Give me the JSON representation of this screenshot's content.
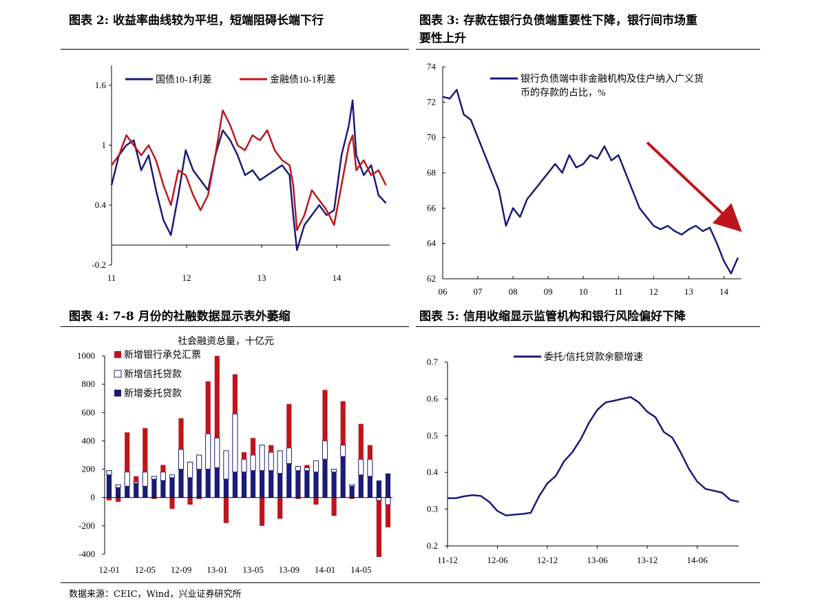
{
  "titles": {
    "c2": "图表 2:  收益率曲线较为平坦，短端阻碍长端下行",
    "c3_line1": "图表 3: 存款在银行负债端重要性下降，银行间市场重",
    "c3_line2": "要性上升",
    "c4": "图表 4:  7-8 月份的社融数据显示表外萎缩",
    "c5": "图表 5:  信用收缩显示监管机构和银行风险偏好下降"
  },
  "source": "数据来源：CEIC，Wind，兴业证券研究所",
  "colors": {
    "navy": "#1a1a78",
    "red": "#c0141c"
  },
  "chart_data": [
    {
      "id": "c2",
      "type": "line",
      "ylim": [
        -0.2,
        1.8
      ],
      "yticks": [
        -0.2,
        0.4,
        1,
        1.6
      ],
      "xticks": [
        "11",
        "12",
        "13",
        "14"
      ],
      "x_start": 2011.0,
      "series": [
        {
          "name": "国债10-1利差",
          "color": "#1a1a78",
          "x": [
            2011.0,
            2011.1,
            2011.2,
            2011.3,
            2011.4,
            2011.5,
            2011.6,
            2011.7,
            2011.8,
            2011.9,
            2012.0,
            2012.1,
            2012.2,
            2012.3,
            2012.4,
            2012.5,
            2012.6,
            2012.7,
            2012.8,
            2012.9,
            2013.0,
            2013.1,
            2013.2,
            2013.3,
            2013.4,
            2013.45,
            2013.5,
            2013.6,
            2013.7,
            2013.8,
            2013.9,
            2014.0,
            2014.1,
            2014.2,
            2014.25,
            2014.3,
            2014.4,
            2014.5,
            2014.6,
            2014.7
          ],
          "values": [
            0.6,
            0.9,
            1.0,
            1.05,
            0.75,
            0.9,
            0.55,
            0.25,
            0.1,
            0.5,
            0.95,
            0.75,
            0.65,
            0.55,
            0.9,
            1.15,
            1.05,
            0.9,
            0.7,
            0.75,
            0.65,
            0.7,
            0.75,
            0.8,
            0.7,
            0.3,
            -0.05,
            0.2,
            0.3,
            0.4,
            0.3,
            0.35,
            0.9,
            1.2,
            1.45,
            0.9,
            0.7,
            0.8,
            0.5,
            0.42
          ]
        },
        {
          "name": "金融债10-1利差",
          "color": "#c0141c",
          "x": [
            2011.0,
            2011.1,
            2011.2,
            2011.3,
            2011.4,
            2011.5,
            2011.6,
            2011.7,
            2011.8,
            2011.9,
            2012.0,
            2012.1,
            2012.2,
            2012.3,
            2012.4,
            2012.5,
            2012.6,
            2012.7,
            2012.8,
            2012.9,
            2013.0,
            2013.1,
            2013.2,
            2013.3,
            2013.4,
            2013.45,
            2013.5,
            2013.6,
            2013.7,
            2013.8,
            2013.9,
            2014.0,
            2014.1,
            2014.2,
            2014.25,
            2014.3,
            2014.4,
            2014.5,
            2014.6,
            2014.7
          ],
          "values": [
            0.8,
            0.9,
            1.1,
            1.0,
            0.9,
            1.0,
            0.85,
            0.6,
            0.4,
            0.75,
            0.7,
            0.5,
            0.35,
            0.5,
            0.9,
            1.35,
            1.2,
            1.0,
            0.95,
            1.1,
            1.05,
            1.15,
            0.95,
            0.85,
            0.8,
            0.6,
            0.15,
            0.3,
            0.55,
            0.45,
            0.35,
            0.2,
            0.6,
            1.0,
            1.1,
            0.75,
            0.85,
            0.7,
            0.75,
            0.6
          ]
        }
      ]
    },
    {
      "id": "c3",
      "type": "line",
      "ylim": [
        62,
        74
      ],
      "yticks": [
        62,
        64,
        66,
        68,
        70,
        72,
        74
      ],
      "xticks": [
        "06",
        "07",
        "08",
        "09",
        "10",
        "11",
        "12",
        "13",
        "14"
      ],
      "series": [
        {
          "name": "银行负债端中非金融机构及住户纳入广义货币的存款的占比，%",
          "color": "#1a1a78",
          "x": [
            2006.0,
            2006.2,
            2006.4,
            2006.6,
            2006.8,
            2007.0,
            2007.2,
            2007.4,
            2007.6,
            2007.8,
            2008.0,
            2008.2,
            2008.4,
            2008.6,
            2008.8,
            2009.0,
            2009.2,
            2009.4,
            2009.6,
            2009.8,
            2010.0,
            2010.2,
            2010.4,
            2010.6,
            2010.8,
            2011.0,
            2011.2,
            2011.4,
            2011.6,
            2011.8,
            2012.0,
            2012.2,
            2012.4,
            2012.6,
            2012.8,
            2013.0,
            2013.2,
            2013.4,
            2013.6,
            2013.8,
            2014.0,
            2014.2,
            2014.4
          ],
          "values": [
            72.3,
            72.2,
            72.7,
            71.3,
            71.0,
            70.0,
            69.0,
            68.0,
            67.0,
            65.0,
            66.0,
            65.5,
            66.5,
            67.0,
            67.5,
            68.0,
            68.5,
            68.0,
            69.0,
            68.3,
            68.5,
            69.0,
            68.8,
            69.5,
            68.7,
            69.0,
            68.0,
            67.0,
            66.0,
            65.5,
            65.0,
            64.8,
            65.0,
            64.7,
            64.5,
            64.8,
            65.0,
            64.7,
            64.9,
            64.0,
            63.0,
            62.3,
            63.2
          ]
        }
      ],
      "annotation": "downward-trend-arrow"
    },
    {
      "id": "c4",
      "type": "bar",
      "title": "社会融资总量，十亿元",
      "ylim": [
        -400,
        1000
      ],
      "yticks": [
        -400,
        -200,
        0,
        200,
        400,
        600,
        800,
        1000
      ],
      "xticks": [
        "12-01",
        "12-05",
        "12-09",
        "13-01",
        "13-05",
        "13-09",
        "14-01",
        "14-05"
      ],
      "categories": [
        "12-01",
        "12-02",
        "12-03",
        "12-04",
        "12-05",
        "12-06",
        "12-07",
        "12-08",
        "12-09",
        "12-10",
        "12-11",
        "12-12",
        "13-01",
        "13-02",
        "13-03",
        "13-04",
        "13-05",
        "13-06",
        "13-07",
        "13-08",
        "13-09",
        "13-10",
        "13-11",
        "13-12",
        "14-01",
        "14-02",
        "14-03",
        "14-04",
        "14-05",
        "14-06",
        "14-07",
        "14-08"
      ],
      "series": [
        {
          "name": "新增银行承兑汇票",
          "color": "#c0141c",
          "values": [
            -20,
            -30,
            280,
            40,
            310,
            -10,
            50,
            -80,
            220,
            -50,
            -10,
            370,
            580,
            -180,
            280,
            50,
            120,
            -200,
            50,
            -150,
            310,
            -10,
            20,
            -50,
            360,
            -130,
            310,
            -10,
            250,
            100,
            -400,
            -160
          ]
        },
        {
          "name": "新增信托贷款",
          "color": "#ffffff",
          "values": [
            30,
            20,
            100,
            10,
            100,
            20,
            60,
            20,
            140,
            110,
            100,
            250,
            210,
            200,
            410,
            90,
            110,
            180,
            130,
            160,
            110,
            30,
            20,
            80,
            130,
            20,
            80,
            10,
            110,
            120,
            -20,
            -50
          ]
        },
        {
          "name": "新增委托贷款",
          "color": "#1a1a78",
          "values": [
            160,
            70,
            80,
            100,
            80,
            130,
            120,
            140,
            200,
            140,
            200,
            200,
            210,
            130,
            180,
            180,
            190,
            190,
            190,
            170,
            240,
            190,
            190,
            180,
            270,
            180,
            290,
            80,
            160,
            150,
            120,
            170
          ]
        }
      ]
    },
    {
      "id": "c5",
      "type": "line",
      "ylim": [
        0.2,
        0.7
      ],
      "yticks": [
        0.2,
        0.3,
        0.4,
        0.5,
        0.6,
        0.7
      ],
      "xticks": [
        "11-12",
        "12-06",
        "12-12",
        "13-06",
        "13-12",
        "14-06"
      ],
      "series": [
        {
          "name": "委托/信托贷款余额增速",
          "color": "#1a1a78",
          "x": [
            0,
            1,
            2,
            3,
            4,
            5,
            6,
            7,
            8,
            9,
            10,
            11,
            12,
            13,
            14,
            15,
            16,
            17,
            18,
            19,
            20,
            21,
            22,
            23,
            24,
            25,
            26,
            27,
            28,
            29,
            30,
            31,
            32,
            33,
            34,
            35
          ],
          "values": [
            0.33,
            0.33,
            0.335,
            0.338,
            0.336,
            0.32,
            0.295,
            0.283,
            0.285,
            0.287,
            0.29,
            0.335,
            0.37,
            0.39,
            0.43,
            0.455,
            0.49,
            0.535,
            0.57,
            0.59,
            0.595,
            0.6,
            0.605,
            0.59,
            0.565,
            0.55,
            0.51,
            0.495,
            0.455,
            0.41,
            0.375,
            0.355,
            0.35,
            0.345,
            0.325,
            0.32
          ]
        }
      ]
    }
  ]
}
